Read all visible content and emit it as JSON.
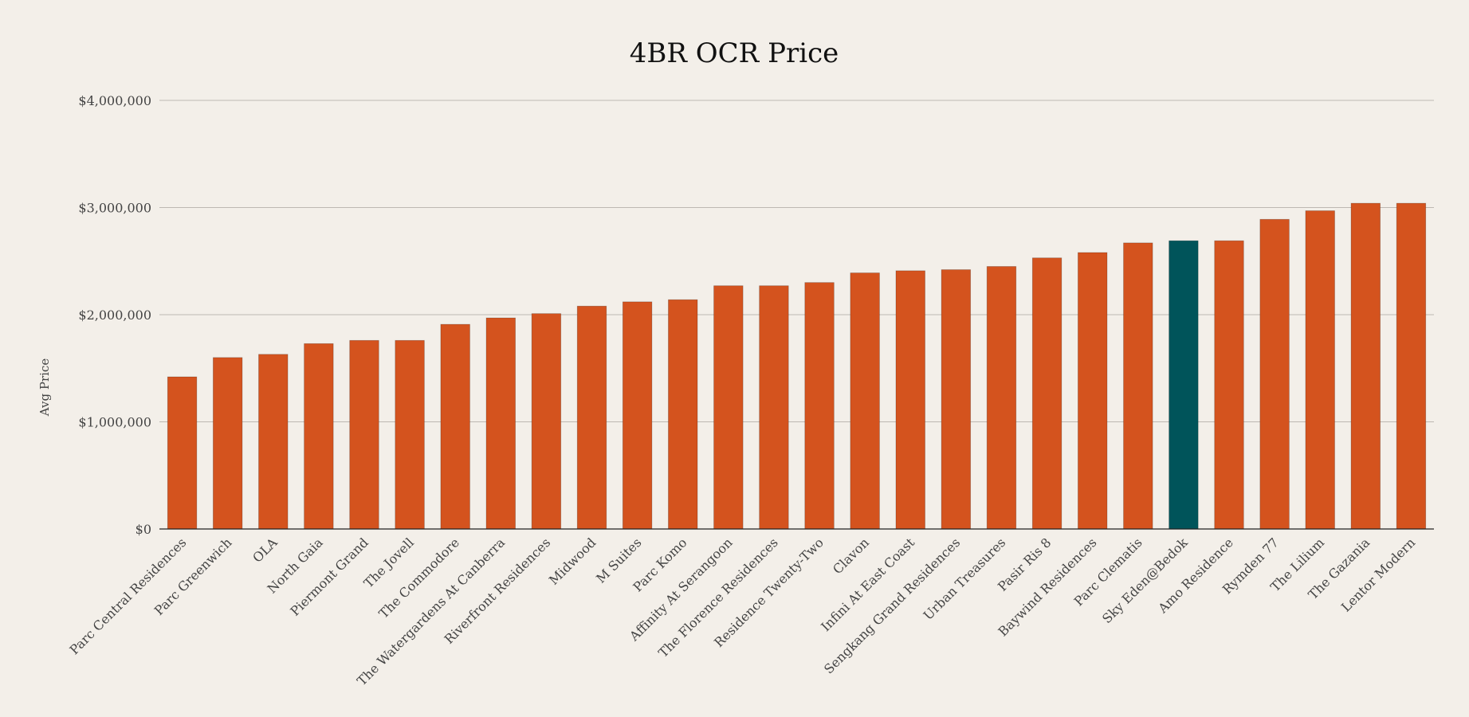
{
  "chart_data": {
    "type": "bar",
    "title": "4BR OCR Price",
    "xlabel": "",
    "ylabel": "Avg Price",
    "ylim": [
      0,
      4000000
    ],
    "yticks": [
      0,
      1000000,
      2000000,
      3000000,
      4000000
    ],
    "ytick_labels": [
      "$0",
      "$1,000,000",
      "$2,000,000",
      "$3,000,000",
      "$4,000,000"
    ],
    "grid": true,
    "colors": {
      "default": "#d4531e",
      "highlight": "#00545a"
    },
    "highlight_category": "Sky Eden@Bedok",
    "categories": [
      "Parc Central Residences",
      "Parc Greenwich",
      "OLA",
      "North Gaia",
      "Piermont Grand",
      "The Jovell",
      "The Commodore",
      "The Watergardens At Canberra",
      "Riverfront Residences",
      "Midwood",
      "M Suites",
      "Parc Komo",
      "Affinity At Serangoon",
      "The Florence Residences",
      "Residence Twenty-Two",
      "Clavon",
      "Infini At East Coast",
      "Sengkang Grand Residences",
      "Urban Treasures",
      "Pasir Ris 8",
      "Baywind Residences",
      "Parc Clematis",
      "Sky Eden@Bedok",
      "Amo Residence",
      "Rymden 77",
      "The Lilium",
      "The Gazania",
      "Lentor Modern"
    ],
    "values": [
      1420000,
      1600000,
      1630000,
      1730000,
      1760000,
      1760000,
      1910000,
      1970000,
      2010000,
      2080000,
      2120000,
      2140000,
      2270000,
      2270000,
      2300000,
      2390000,
      2410000,
      2420000,
      2450000,
      2530000,
      2580000,
      2670000,
      2690000,
      2690000,
      2890000,
      2970000,
      3040000,
      3040000
    ]
  }
}
